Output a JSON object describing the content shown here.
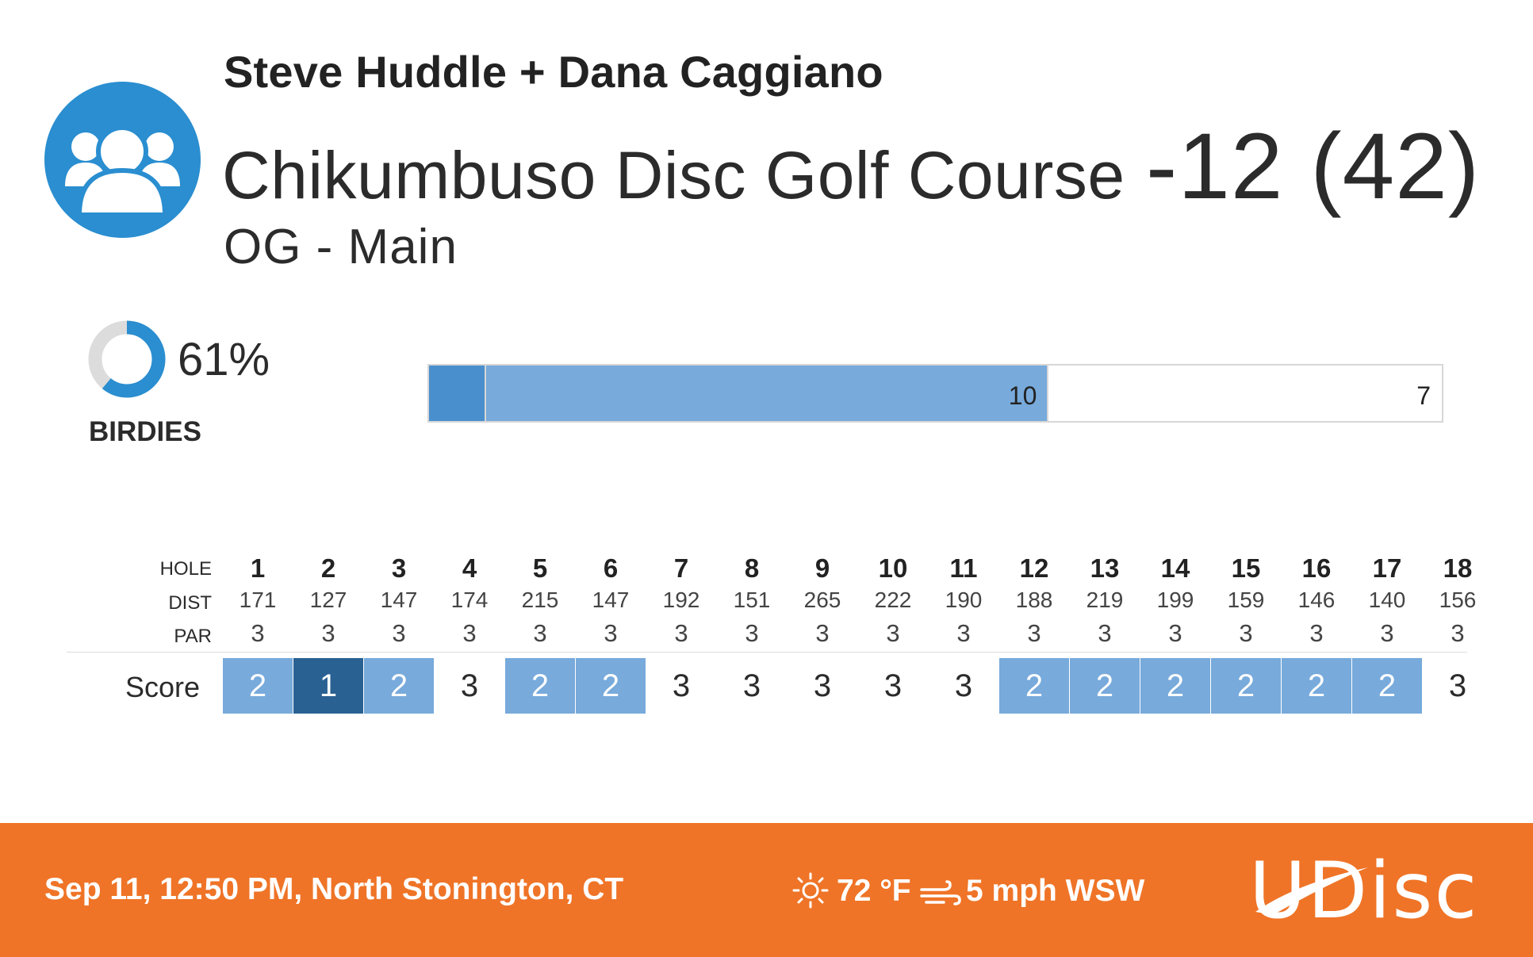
{
  "header": {
    "players": "Steve Huddle + Dana Caggiano",
    "course": "Chikumbuso Disc Golf Course",
    "total": "-12 (42)",
    "layout": "OG - Main",
    "avatar_icon": "group-users-icon",
    "avatar_color": "#2a8ed0"
  },
  "stats": {
    "percent_text": "61%",
    "percent_value": 0.61,
    "label": "BIRDIES",
    "donut_color": "#2a8ed0",
    "donut_track_color": "#dcdcdc"
  },
  "chart_data": {
    "type": "bar",
    "orientation": "horizontal-stacked",
    "segments": [
      {
        "name": "ace",
        "value": 1,
        "label": "",
        "color": "#4a8fcd"
      },
      {
        "name": "birdie",
        "value": 10,
        "label": "10",
        "color": "#78aadb"
      },
      {
        "name": "par",
        "value": 7,
        "label": "7",
        "color": "#ffffff"
      }
    ]
  },
  "scorecard": {
    "labels": {
      "hole": "HOLE",
      "dist": "DIST",
      "par": "PAR",
      "score": "Score"
    },
    "holes": [
      {
        "hole": "1",
        "dist": "171",
        "par": "3",
        "score": "2",
        "type": "birdie"
      },
      {
        "hole": "2",
        "dist": "127",
        "par": "3",
        "score": "1",
        "type": "ace"
      },
      {
        "hole": "3",
        "dist": "147",
        "par": "3",
        "score": "2",
        "type": "birdie"
      },
      {
        "hole": "4",
        "dist": "174",
        "par": "3",
        "score": "3",
        "type": "par"
      },
      {
        "hole": "5",
        "dist": "215",
        "par": "3",
        "score": "2",
        "type": "birdie"
      },
      {
        "hole": "6",
        "dist": "147",
        "par": "3",
        "score": "2",
        "type": "birdie"
      },
      {
        "hole": "7",
        "dist": "192",
        "par": "3",
        "score": "3",
        "type": "par"
      },
      {
        "hole": "8",
        "dist": "151",
        "par": "3",
        "score": "3",
        "type": "par"
      },
      {
        "hole": "9",
        "dist": "265",
        "par": "3",
        "score": "3",
        "type": "par"
      },
      {
        "hole": "10",
        "dist": "222",
        "par": "3",
        "score": "3",
        "type": "par"
      },
      {
        "hole": "11",
        "dist": "190",
        "par": "3",
        "score": "3",
        "type": "par"
      },
      {
        "hole": "12",
        "dist": "188",
        "par": "3",
        "score": "2",
        "type": "birdie"
      },
      {
        "hole": "13",
        "dist": "219",
        "par": "3",
        "score": "2",
        "type": "birdie"
      },
      {
        "hole": "14",
        "dist": "199",
        "par": "3",
        "score": "2",
        "type": "birdie"
      },
      {
        "hole": "15",
        "dist": "159",
        "par": "3",
        "score": "2",
        "type": "birdie"
      },
      {
        "hole": "16",
        "dist": "146",
        "par": "3",
        "score": "2",
        "type": "birdie"
      },
      {
        "hole": "17",
        "dist": "140",
        "par": "3",
        "score": "2",
        "type": "birdie"
      },
      {
        "hole": "18",
        "dist": "156",
        "par": "3",
        "score": "3",
        "type": "par"
      }
    ]
  },
  "footer": {
    "date_location": "Sep 11, 12:50 PM, North Stonington, CT",
    "weather_icon": "sun-icon",
    "temperature": "72 °F",
    "wind_icon": "wind-icon",
    "wind": "5 mph WSW",
    "logo_text": "UDisc",
    "background": "#ef7427"
  }
}
